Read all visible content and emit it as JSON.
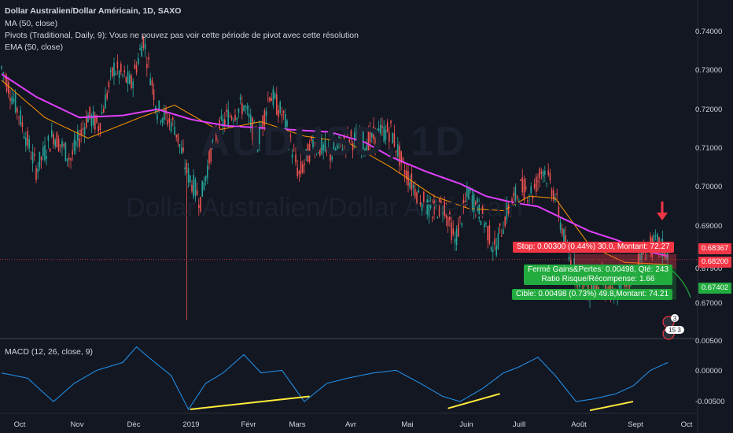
{
  "header": {
    "title": "Dollar Australien/Dollar Américain, 1D, SAXO",
    "indicators": [
      "MA (50, close)",
      "Pivots (Traditional, Daily, 9): Vous ne pouvez pas voir cette période de pivot avec cette résolution",
      "EMA (50, close)"
    ]
  },
  "watermark": {
    "ticker": "AUDUSD, 1D",
    "name": "Dollar Australien/Dollar Américain"
  },
  "price_axis": {
    "labels": [
      "0.74000",
      "0.73000",
      "0.72000",
      "0.71000",
      "0.70000",
      "0.69000",
      "0.67900",
      "0.67000"
    ],
    "tags": [
      {
        "text": "0.68367",
        "color": "#f23645"
      },
      {
        "text": "0.68200",
        "color": "#f23645"
      },
      {
        "text": "0.67402",
        "color": "#22ab3e"
      }
    ]
  },
  "macd": {
    "title": "MACD (12, 26, close, 9)",
    "axis_labels": [
      "0.00500",
      "0.00000",
      "-0.00500"
    ]
  },
  "time_axis": [
    "Oct",
    "Nov",
    "Déc",
    "2019",
    "Févr",
    "Mars",
    "Avr",
    "Mai",
    "Juin",
    "Juill",
    "Août",
    "Sept",
    "Oct"
  ],
  "trade": {
    "stop": "Stop: 0.00300 (0.44%) 30.0, Montant: 72.27",
    "closed": "Fermé Gains&Pertes: 0.00498, Qté: 243",
    "ratio": "Ratio Risque/Récompense: 1.66",
    "target": "Cible: 0.00498 (0.73%) 49.8,Montant: 74.21"
  },
  "events": {
    "count_a": "3",
    "count_b": "15 3"
  },
  "colors": {
    "bg": "#131722",
    "up": "#26a69a",
    "down": "#ef5350",
    "ema": "#e040fb",
    "ma": "#ff9800",
    "macd": "#2196f3",
    "trendline": "#ffeb3b",
    "stop": "#f23645",
    "target": "#22ab3e"
  },
  "chart_data": {
    "type": "candlestick",
    "instrument": "AUDUSD",
    "timeframe": "1D",
    "price_range": [
      0.6665,
      0.7445
    ],
    "macd_range": [
      -0.006,
      0.007
    ],
    "anchors": [
      [
        0,
        0.73
      ],
      [
        10,
        0.719
      ],
      [
        20,
        0.7055
      ],
      [
        30,
        0.714
      ],
      [
        40,
        0.708
      ],
      [
        50,
        0.7185
      ],
      [
        56,
        0.716
      ],
      [
        65,
        0.73
      ],
      [
        75,
        0.726
      ],
      [
        82,
        0.737
      ],
      [
        90,
        0.72
      ],
      [
        100,
        0.716
      ],
      [
        107,
        0.705
      ],
      [
        115,
        0.698
      ],
      [
        122,
        0.712
      ],
      [
        130,
        0.718
      ],
      [
        140,
        0.721
      ],
      [
        148,
        0.712
      ],
      [
        155,
        0.724
      ],
      [
        163,
        0.718
      ],
      [
        172,
        0.704
      ],
      [
        180,
        0.712
      ],
      [
        190,
        0.709
      ],
      [
        200,
        0.713
      ],
      [
        210,
        0.712
      ],
      [
        218,
        0.714
      ],
      [
        225,
        0.715
      ],
      [
        232,
        0.706
      ],
      [
        240,
        0.7
      ],
      [
        248,
        0.695
      ],
      [
        256,
        0.697
      ],
      [
        262,
        0.688
      ],
      [
        270,
        0.7
      ],
      [
        278,
        0.694
      ],
      [
        285,
        0.686
      ],
      [
        292,
        0.695
      ],
      [
        300,
        0.701
      ],
      [
        307,
        0.7
      ],
      [
        313,
        0.706
      ],
      [
        320,
        0.699
      ],
      [
        327,
        0.685
      ],
      [
        333,
        0.68
      ],
      [
        340,
        0.677
      ],
      [
        347,
        0.679
      ],
      [
        354,
        0.674
      ],
      [
        360,
        0.678
      ],
      [
        366,
        0.681
      ],
      [
        372,
        0.686
      ],
      [
        379,
        0.6875
      ],
      [
        385,
        0.685
      ]
    ],
    "ema": [
      [
        0,
        0.7285
      ],
      [
        20,
        0.723
      ],
      [
        45,
        0.718
      ],
      [
        70,
        0.7185
      ],
      [
        90,
        0.72
      ],
      [
        110,
        0.7175
      ],
      [
        130,
        0.716
      ],
      [
        150,
        0.7155
      ],
      [
        170,
        0.715
      ],
      [
        190,
        0.7145
      ],
      [
        210,
        0.712
      ],
      [
        225,
        0.7085
      ],
      [
        245,
        0.705
      ],
      [
        265,
        0.702
      ],
      [
        280,
        0.699
      ],
      [
        295,
        0.6975
      ],
      [
        310,
        0.6965
      ],
      [
        325,
        0.6935
      ],
      [
        340,
        0.6905
      ],
      [
        355,
        0.6885
      ],
      [
        370,
        0.686
      ],
      [
        385,
        0.6845
      ]
    ],
    "ma": [
      [
        0,
        0.727
      ],
      [
        25,
        0.718
      ],
      [
        50,
        0.713
      ],
      [
        80,
        0.718
      ],
      [
        100,
        0.721
      ],
      [
        125,
        0.715
      ],
      [
        150,
        0.717
      ],
      [
        175,
        0.7135
      ],
      [
        200,
        0.712
      ],
      [
        225,
        0.706
      ],
      [
        250,
        0.699
      ],
      [
        270,
        0.696
      ],
      [
        290,
        0.6955
      ],
      [
        305,
        0.699
      ],
      [
        320,
        0.6985
      ],
      [
        340,
        0.687
      ],
      [
        360,
        0.683
      ],
      [
        385,
        0.6825
      ]
    ],
    "macd_line": [
      [
        0,
        0.001
      ],
      [
        15,
        0.0
      ],
      [
        30,
        -0.0045
      ],
      [
        42,
        -0.001
      ],
      [
        55,
        0.0015
      ],
      [
        70,
        0.003
      ],
      [
        78,
        0.006
      ],
      [
        85,
        0.004
      ],
      [
        98,
        0.0005
      ],
      [
        108,
        -0.006
      ],
      [
        118,
        -0.001
      ],
      [
        128,
        0.001
      ],
      [
        140,
        0.0045
      ],
      [
        150,
        0.001
      ],
      [
        162,
        0.0015
      ],
      [
        175,
        -0.0045
      ],
      [
        188,
        -0.001
      ],
      [
        200,
        0.0
      ],
      [
        215,
        0.001
      ],
      [
        228,
        0.0015
      ],
      [
        242,
        -0.001
      ],
      [
        255,
        -0.0035
      ],
      [
        265,
        -0.0045
      ],
      [
        278,
        -0.002
      ],
      [
        290,
        0.001
      ],
      [
        298,
        0.002
      ],
      [
        310,
        0.004
      ],
      [
        320,
        0.0005
      ],
      [
        332,
        -0.0045
      ],
      [
        342,
        -0.004
      ],
      [
        355,
        -0.003
      ],
      [
        365,
        -0.0015
      ],
      [
        375,
        0.0015
      ],
      [
        385,
        0.003
      ]
    ]
  }
}
